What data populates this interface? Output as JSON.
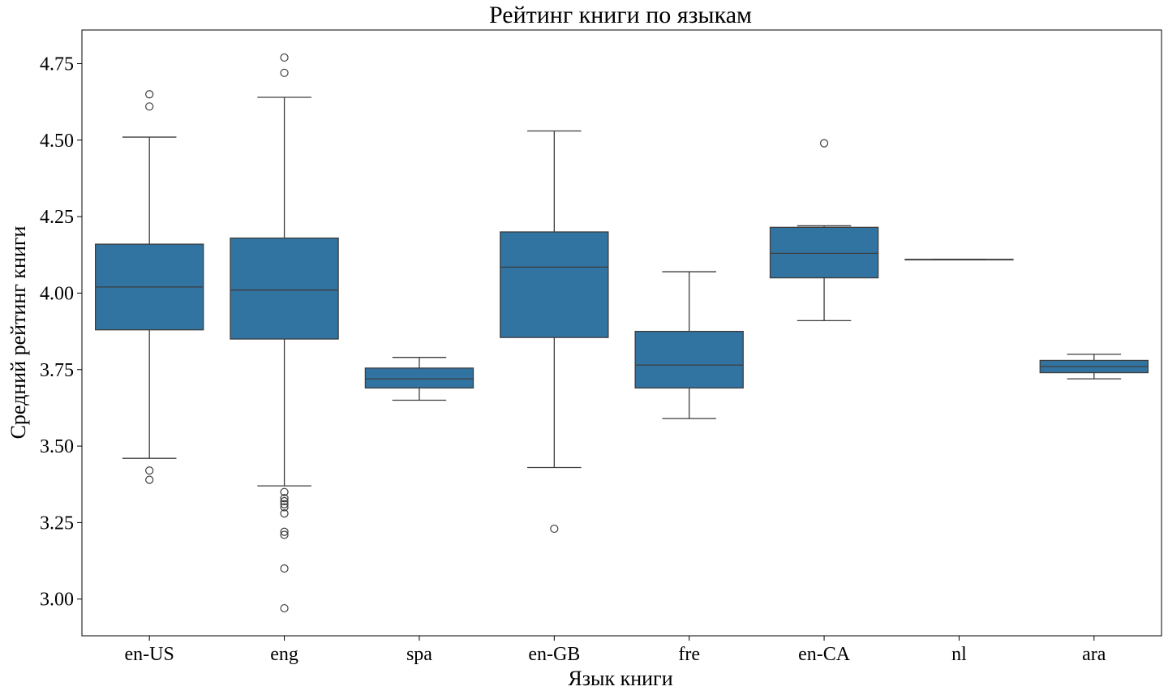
{
  "chart_data": {
    "type": "box",
    "title": "Рейтинг книги по языкам",
    "xlabel": "Язык книги",
    "ylabel": "Средний рейтинг книги",
    "ylim": [
      2.88,
      4.86
    ],
    "yticks": [
      "3.00",
      "3.25",
      "3.50",
      "3.75",
      "4.00",
      "4.25",
      "4.50",
      "4.75"
    ],
    "grid": false,
    "color": "#3274a1",
    "categories": [
      "en-US",
      "eng",
      "spa",
      "en-GB",
      "fre",
      "en-CA",
      "nl",
      "ara"
    ],
    "boxes": [
      {
        "category": "en-US",
        "whisker_low": 3.46,
        "q1": 3.88,
        "median": 4.02,
        "q3": 4.16,
        "whisker_high": 4.51,
        "outliers": [
          4.65,
          4.61,
          3.42,
          3.39
        ]
      },
      {
        "category": "eng",
        "whisker_low": 3.37,
        "q1": 3.85,
        "median": 4.01,
        "q3": 4.18,
        "whisker_high": 4.64,
        "outliers": [
          4.77,
          4.72,
          3.35,
          3.33,
          3.32,
          3.31,
          3.3,
          3.28,
          3.22,
          3.21,
          3.1,
          2.97
        ]
      },
      {
        "category": "spa",
        "whisker_low": 3.65,
        "q1": 3.69,
        "median": 3.72,
        "q3": 3.755,
        "whisker_high": 3.79,
        "outliers": []
      },
      {
        "category": "en-GB",
        "whisker_low": 3.43,
        "q1": 3.855,
        "median": 4.085,
        "q3": 4.2,
        "whisker_high": 4.53,
        "outliers": [
          3.23
        ]
      },
      {
        "category": "fre",
        "whisker_low": 3.59,
        "q1": 3.69,
        "median": 3.765,
        "q3": 3.875,
        "whisker_high": 4.07,
        "outliers": []
      },
      {
        "category": "en-CA",
        "whisker_low": 3.91,
        "q1": 4.05,
        "median": 4.13,
        "q3": 4.215,
        "whisker_high": 4.22,
        "outliers": [
          4.49
        ]
      },
      {
        "category": "nl",
        "whisker_low": 4.11,
        "q1": 4.11,
        "median": 4.11,
        "q3": 4.11,
        "whisker_high": 4.11,
        "outliers": []
      },
      {
        "category": "ara",
        "whisker_low": 3.72,
        "q1": 3.74,
        "median": 3.76,
        "q3": 3.78,
        "whisker_high": 3.8,
        "outliers": []
      }
    ]
  }
}
